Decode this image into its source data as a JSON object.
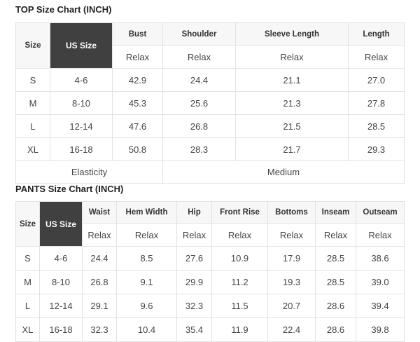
{
  "top": {
    "title": "TOP Size Chart (INCH)",
    "size_label": "Size",
    "us_size_label": "US Size",
    "columns": [
      "Bust",
      "Shoulder",
      "Sleeve Length",
      "Length"
    ],
    "sub": [
      "Relax",
      "Relax",
      "Relax",
      "Relax"
    ],
    "rows": [
      [
        "S",
        "4-6",
        "42.9",
        "24.4",
        "21.1",
        "27.0"
      ],
      [
        "M",
        "8-10",
        "45.3",
        "25.6",
        "21.3",
        "27.8"
      ],
      [
        "L",
        "12-14",
        "47.6",
        "26.8",
        "21.5",
        "28.5"
      ],
      [
        "XL",
        "16-18",
        "50.8",
        "28.3",
        "21.7",
        "29.3"
      ]
    ],
    "elasticity_label": "Elasticity",
    "elasticity_value": "Medium"
  },
  "pants": {
    "title": "PANTS Size Chart (INCH)",
    "size_label": "Size",
    "us_size_label": "US Size",
    "columns": [
      "Waist",
      "Hem Width",
      "Hip",
      "Front Rise",
      "Bottoms",
      "Inseam",
      "Outseam"
    ],
    "sub": [
      "Relax",
      "Relax",
      "Relax",
      "Relax",
      "Relax",
      "Relax",
      "Relax"
    ],
    "rows": [
      [
        "S",
        "4-6",
        "24.4",
        "8.5",
        "27.6",
        "10.9",
        "17.9",
        "28.5",
        "38.6"
      ],
      [
        "M",
        "8-10",
        "26.8",
        "9.1",
        "29.9",
        "11.2",
        "19.3",
        "28.5",
        "39.0"
      ],
      [
        "L",
        "12-14",
        "29.1",
        "9.6",
        "32.3",
        "11.5",
        "20.7",
        "28.6",
        "39.4"
      ],
      [
        "XL",
        "16-18",
        "32.3",
        "10.4",
        "35.4",
        "11.9",
        "22.4",
        "28.6",
        "39.8"
      ]
    ]
  }
}
